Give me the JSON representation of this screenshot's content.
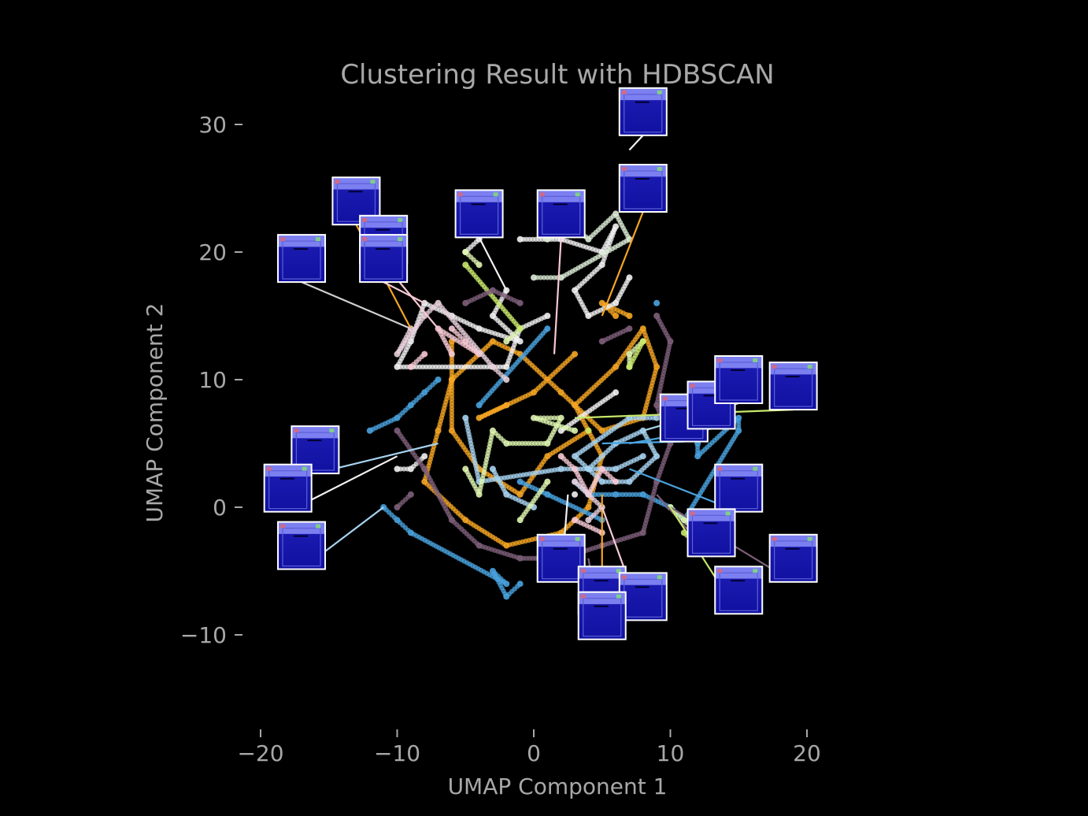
{
  "chart_data": {
    "type": "scatter",
    "title": "Clustering Result with HDBSCAN",
    "xlabel": "UMAP Component 1",
    "ylabel": "UMAP Component 2",
    "xlim": [
      -22,
      22
    ],
    "ylim": [
      -17,
      35
    ],
    "xticks": [
      -20,
      -10,
      0,
      10,
      20
    ],
    "yticks": [
      -10,
      0,
      10,
      20,
      30
    ],
    "xtick_labels": [
      "−20",
      "−10",
      "0",
      "10",
      "20"
    ],
    "ytick_labels": [
      "−10",
      "0",
      "10",
      "20",
      "30"
    ],
    "grid": false,
    "background": "#000000",
    "text_color": "#a8a8a8",
    "series": [
      {
        "color": "#f5a623",
        "points": [
          [
            -6,
            13
          ],
          [
            -6,
            10
          ],
          [
            -7,
            6
          ],
          [
            -8,
            2
          ],
          [
            -5,
            -1
          ],
          [
            -2,
            -3
          ],
          [
            2,
            -2
          ],
          [
            4,
            0
          ],
          [
            5,
            4
          ],
          [
            3,
            8
          ],
          [
            6,
            11
          ],
          [
            8,
            14
          ],
          [
            9,
            11
          ],
          [
            8,
            7
          ],
          [
            5,
            6
          ],
          [
            2,
            9
          ],
          [
            -1,
            12
          ],
          [
            -3,
            13
          ],
          [
            -6,
            10
          ],
          [
            -6,
            6
          ],
          [
            -4,
            3
          ],
          [
            -1,
            1
          ],
          [
            1,
            4
          ],
          [
            4,
            6
          ],
          [
            6,
            15
          ],
          [
            5,
            16
          ],
          [
            7,
            15
          ],
          [
            -2,
            8
          ],
          [
            -4,
            7
          ],
          [
            0,
            9
          ],
          [
            3,
            12
          ]
        ]
      },
      {
        "color": "#f2f2f2",
        "points": [
          [
            -1,
            21
          ],
          [
            2,
            21
          ],
          [
            5,
            20
          ],
          [
            6,
            22
          ],
          [
            5,
            19
          ],
          [
            3,
            17
          ],
          [
            4,
            15
          ],
          [
            6,
            16
          ],
          [
            7,
            18
          ],
          [
            -2,
            17
          ],
          [
            -3,
            15
          ],
          [
            -1,
            13
          ],
          [
            -4,
            14
          ],
          [
            -6,
            15
          ],
          [
            -8,
            16
          ],
          [
            -9,
            13
          ],
          [
            -10,
            11
          ],
          [
            -2,
            11
          ],
          [
            -1,
            14
          ],
          [
            1,
            15
          ],
          [
            -8,
            4
          ],
          [
            -9,
            3
          ],
          [
            -10,
            3
          ],
          [
            3,
            1
          ],
          [
            -4,
            21
          ],
          [
            -5,
            20
          ],
          [
            6,
            9
          ],
          [
            2,
            6
          ]
        ]
      },
      {
        "color": "#4aa3df",
        "points": [
          [
            -12,
            6
          ],
          [
            -10,
            7
          ],
          [
            -9,
            8
          ],
          [
            -8,
            9
          ],
          [
            -7,
            10
          ],
          [
            -11,
            0
          ],
          [
            -10,
            -1
          ],
          [
            -9,
            -2
          ],
          [
            -2,
            -6
          ],
          [
            -3,
            -5
          ],
          [
            -2,
            -7
          ],
          [
            -1,
            -6
          ],
          [
            3,
            2
          ],
          [
            4,
            1
          ],
          [
            6,
            1
          ],
          [
            8,
            1
          ],
          [
            10,
            0
          ],
          [
            11,
            -1
          ],
          [
            15,
            6
          ],
          [
            15,
            7
          ],
          [
            12,
            4
          ],
          [
            12,
            5
          ],
          [
            -1,
            2
          ],
          [
            1,
            1
          ],
          [
            5,
            -1
          ],
          [
            -4,
            8
          ],
          [
            1,
            14
          ],
          [
            9,
            16
          ]
        ]
      },
      {
        "color": "#a7d3f0",
        "points": [
          [
            4,
            3
          ],
          [
            6,
            5
          ],
          [
            8,
            6
          ],
          [
            9,
            4
          ],
          [
            7,
            2
          ],
          [
            5,
            2
          ],
          [
            3,
            4
          ],
          [
            7,
            7
          ],
          [
            9,
            7
          ],
          [
            -3,
            3
          ],
          [
            -2,
            1
          ],
          [
            0,
            0
          ],
          [
            -5,
            7
          ],
          [
            -4,
            2
          ],
          [
            2,
            3
          ],
          [
            6,
            3
          ],
          [
            8,
            4
          ]
        ]
      },
      {
        "color": "#dff5b0",
        "points": [
          [
            -5,
            3
          ],
          [
            -4,
            1
          ],
          [
            -3,
            6
          ],
          [
            -2,
            5
          ],
          [
            1,
            5
          ],
          [
            2,
            7
          ],
          [
            0,
            7
          ],
          [
            3,
            6
          ],
          [
            -4,
            19
          ],
          [
            -5,
            20
          ],
          [
            7,
            11
          ],
          [
            7,
            12
          ],
          [
            8,
            13
          ],
          [
            -1,
            14
          ],
          [
            -2,
            13
          ],
          [
            10,
            0
          ],
          [
            11,
            -1
          ],
          [
            12,
            -2
          ],
          [
            1,
            2
          ],
          [
            -1,
            -1
          ]
        ]
      },
      {
        "color": "#c8e86a",
        "points": [
          [
            7,
            11
          ],
          [
            8,
            13
          ],
          [
            -5,
            19
          ],
          [
            -1,
            14
          ],
          [
            11,
            -2
          ],
          [
            12,
            -3
          ],
          [
            4,
            6
          ]
        ]
      },
      {
        "color": "#f7c9d4",
        "points": [
          [
            -6,
            14
          ],
          [
            -5,
            13
          ],
          [
            -4,
            12
          ],
          [
            -7,
            14
          ],
          [
            -6,
            12
          ],
          [
            2,
            4
          ],
          [
            3,
            3
          ],
          [
            4,
            1
          ],
          [
            5,
            3
          ],
          [
            6,
            2
          ],
          [
            -8,
            12
          ],
          [
            -9,
            11
          ],
          [
            5,
            -2
          ],
          [
            3,
            -1
          ]
        ]
      },
      {
        "color": "#7e5f7a",
        "points": [
          [
            -10,
            6
          ],
          [
            -8,
            3
          ],
          [
            -6,
            -1
          ],
          [
            -4,
            -3
          ],
          [
            -1,
            -4
          ],
          [
            2,
            -4
          ],
          [
            5,
            -3
          ],
          [
            8,
            -2
          ],
          [
            9,
            2
          ],
          [
            10,
            5
          ],
          [
            9,
            8
          ],
          [
            10,
            13
          ],
          [
            9,
            15
          ],
          [
            -1,
            16
          ],
          [
            -3,
            17
          ],
          [
            -5,
            16
          ],
          [
            -9,
            1
          ],
          [
            -10,
            0
          ],
          [
            7,
            14
          ],
          [
            5,
            13
          ]
        ]
      },
      {
        "color": "#e8d0dc",
        "points": [
          [
            -9,
            14
          ],
          [
            -10,
            12
          ],
          [
            -8,
            15
          ],
          [
            -7,
            16
          ],
          [
            -3,
            11
          ],
          [
            -2,
            10
          ],
          [
            4,
            -1
          ],
          [
            5,
            0
          ],
          [
            3,
            2
          ]
        ]
      },
      {
        "color": "#dcebd6",
        "points": [
          [
            1,
            21
          ],
          [
            3,
            22
          ],
          [
            4,
            21
          ],
          [
            6,
            23
          ],
          [
            7,
            21
          ],
          [
            2,
            18
          ],
          [
            0,
            18
          ]
        ]
      }
    ],
    "thumbnails": [
      {
        "x": 8,
        "y": 31,
        "ax": 7,
        "ay": 28
      },
      {
        "x": 8,
        "y": 25,
        "ax": 5,
        "ay": 15
      },
      {
        "x": 2,
        "y": 23,
        "ax": 1.5,
        "ay": 12
      },
      {
        "x": -4,
        "y": 23,
        "ax": -2,
        "ay": 17
      },
      {
        "x": -13,
        "y": 24,
        "ax": -9,
        "ay": 14
      },
      {
        "x": -11,
        "y": 21,
        "ax": -7,
        "ay": 14
      },
      {
        "x": -11,
        "y": 19.5,
        "ax": -8,
        "ay": 16
      },
      {
        "x": -17,
        "y": 19.5,
        "ax": -9,
        "ay": 14
      },
      {
        "x": -16,
        "y": 4.5,
        "ax": -7,
        "ay": 5
      },
      {
        "x": -18,
        "y": 1.5,
        "ax": -10,
        "ay": 4
      },
      {
        "x": -17,
        "y": -3,
        "ax": -11,
        "ay": 0
      },
      {
        "x": 2,
        "y": -4,
        "ax": 2.5,
        "ay": 1
      },
      {
        "x": 5,
        "y": -6.5,
        "ax": 5,
        "ay": 1
      },
      {
        "x": 8,
        "y": -7,
        "ax": 5,
        "ay": 0
      },
      {
        "x": 5,
        "y": -8.5,
        "ax": 4,
        "ay": -4
      },
      {
        "x": 11,
        "y": 7,
        "ax": 5,
        "ay": 5
      },
      {
        "x": 13,
        "y": 8,
        "ax": 7,
        "ay": 5
      },
      {
        "x": 15,
        "y": 10,
        "ax": 8,
        "ay": 6
      },
      {
        "x": 19,
        "y": 9.5,
        "ax": 3,
        "ay": 7
      },
      {
        "x": 15,
        "y": 1.5,
        "ax": 7,
        "ay": 3
      },
      {
        "x": 13,
        "y": -2,
        "ax": 9,
        "ay": 1
      },
      {
        "x": 19,
        "y": -4,
        "ax": 10,
        "ay": 0
      },
      {
        "x": 15,
        "y": -6.5,
        "ax": 10,
        "ay": 0
      }
    ]
  }
}
